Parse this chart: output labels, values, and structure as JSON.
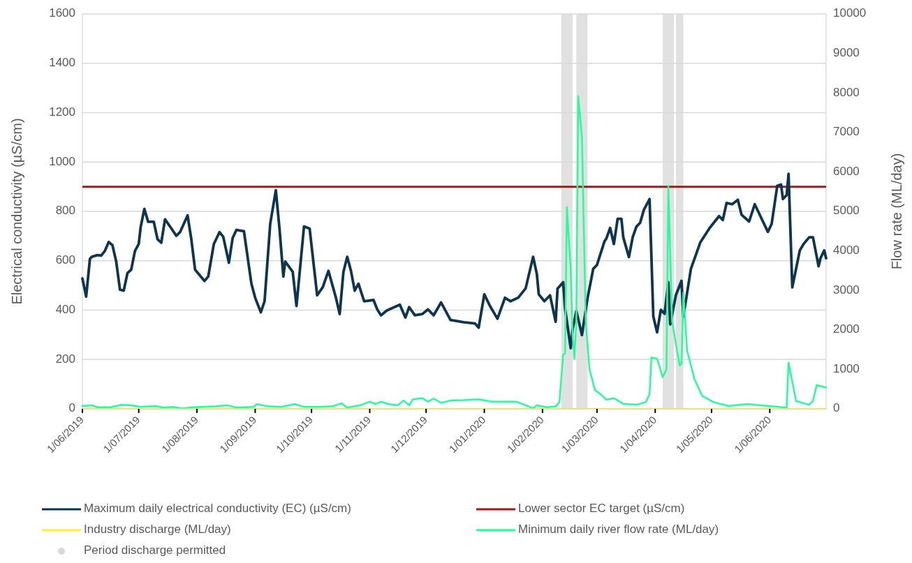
{
  "chart_data": {
    "type": "line",
    "xlabel": null,
    "ylabel": "Electrical conductivity (µS/cm)",
    "y2label": "Flow rate (ML/day)",
    "xlim": [
      "2019-06-01",
      "2020-07-01"
    ],
    "xticks": [
      {
        "value": "2019-06-01",
        "label": "1/06/2019"
      },
      {
        "value": "2019-07-01",
        "label": "1/07/2019"
      },
      {
        "value": "2019-08-01",
        "label": "1/08/2019"
      },
      {
        "value": "2019-09-01",
        "label": "1/09/2019"
      },
      {
        "value": "2019-10-01",
        "label": "1/10/2019"
      },
      {
        "value": "2019-11-01",
        "label": "1/11/2019"
      },
      {
        "value": "2019-12-01",
        "label": "1/12/2019"
      },
      {
        "value": "2020-01-01",
        "label": "1/01/2020"
      },
      {
        "value": "2020-02-01",
        "label": "1/02/2020"
      },
      {
        "value": "2020-03-01",
        "label": "1/03/2020"
      },
      {
        "value": "2020-04-01",
        "label": "1/04/2020"
      },
      {
        "value": "2020-05-01",
        "label": "1/05/2020"
      },
      {
        "value": "2020-06-01",
        "label": "1/06/2020"
      }
    ],
    "ylim": [
      0,
      1600
    ],
    "yticks": [
      0,
      200,
      400,
      600,
      800,
      1000,
      1200,
      1400,
      1600
    ],
    "y2lim": [
      0,
      10000
    ],
    "y2ticks": [
      0,
      1000,
      2000,
      3000,
      4000,
      5000,
      6000,
      7000,
      8000,
      9000,
      10000
    ],
    "grid": "y",
    "legend": "bottom",
    "line_style": "solid",
    "marker": "none",
    "series": [
      {
        "name": "Maximum daily electrical conductivity (EC) (µS/cm)",
        "color": "#0d3550",
        "x": [
          "2019-06-01",
          "2019-06-03",
          "2019-06-05",
          "2019-06-06",
          "2019-06-09",
          "2019-06-11",
          "2019-06-13",
          "2019-06-15",
          "2019-06-17",
          "2019-06-19",
          "2019-06-21",
          "2019-06-23",
          "2019-06-25",
          "2019-06-27",
          "2019-06-29",
          "2019-07-01",
          "2019-07-02",
          "2019-07-04",
          "2019-07-06",
          "2019-07-09",
          "2019-07-11",
          "2019-07-13",
          "2019-07-15",
          "2019-07-18",
          "2019-07-21",
          "2019-07-23",
          "2019-07-27",
          "2019-07-29",
          "2019-07-31",
          "2019-08-05",
          "2019-08-07",
          "2019-08-10",
          "2019-08-13",
          "2019-08-15",
          "2019-08-18",
          "2019-08-20",
          "2019-08-22",
          "2019-08-26",
          "2019-08-30",
          "2019-09-01",
          "2019-09-04",
          "2019-09-06",
          "2019-09-09",
          "2019-09-12",
          "2019-09-14",
          "2019-09-16",
          "2019-09-17",
          "2019-09-21",
          "2019-09-23",
          "2019-09-27",
          "2019-09-30",
          "2019-10-04",
          "2019-10-07",
          "2019-10-10",
          "2019-10-14",
          "2019-10-16",
          "2019-10-18",
          "2019-10-20",
          "2019-10-22",
          "2019-10-24",
          "2019-10-26",
          "2019-10-29",
          "2019-11-03",
          "2019-11-05",
          "2019-11-07",
          "2019-11-10",
          "2019-11-12",
          "2019-11-17",
          "2019-11-20",
          "2019-11-22",
          "2019-11-25",
          "2019-11-29",
          "2019-12-02",
          "2019-12-05",
          "2019-12-09",
          "2019-12-14",
          "2019-12-21",
          "2019-12-27",
          "2019-12-29",
          "2020-01-01",
          "2020-01-04",
          "2020-01-08",
          "2020-01-12",
          "2020-01-15",
          "2020-01-19",
          "2020-01-23",
          "2020-01-27",
          "2020-01-29",
          "2020-01-30",
          "2020-02-02",
          "2020-02-05",
          "2020-02-08",
          "2020-02-09",
          "2020-02-12",
          "2020-02-13",
          "2020-02-16",
          "2020-02-17",
          "2020-02-19",
          "2020-02-22",
          "2020-02-25",
          "2020-02-28",
          "2020-03-01",
          "2020-03-05",
          "2020-03-06",
          "2020-03-08",
          "2020-03-10",
          "2020-03-12",
          "2020-03-14",
          "2020-03-15",
          "2020-03-18",
          "2020-03-20",
          "2020-03-22",
          "2020-03-24",
          "2020-03-26",
          "2020-03-29",
          "2020-03-31",
          "2020-04-02",
          "2020-04-04",
          "2020-04-06",
          "2020-04-08",
          "2020-04-09",
          "2020-04-12",
          "2020-04-15",
          "2020-04-16",
          "2020-04-20",
          "2020-04-25",
          "2020-04-30",
          "2020-05-05",
          "2020-05-07",
          "2020-05-09",
          "2020-05-12",
          "2020-05-15",
          "2020-05-17",
          "2020-05-21",
          "2020-05-24",
          "2020-05-27",
          "2020-05-31",
          "2020-06-02",
          "2020-06-05",
          "2020-06-07",
          "2020-06-08",
          "2020-06-10",
          "2020-06-11",
          "2020-06-13",
          "2020-06-17",
          "2020-06-19",
          "2020-06-22",
          "2020-06-24",
          "2020-06-27",
          "2020-06-28",
          "2020-06-30",
          "2020-07-01"
        ],
        "values": [
          528,
          455,
          607,
          616,
          623,
          621,
          640,
          676,
          663,
          597,
          483,
          479,
          550,
          564,
          640,
          668,
          735,
          810,
          758,
          758,
          687,
          673,
          768,
          735,
          701,
          716,
          784,
          687,
          564,
          518,
          536,
          668,
          716,
          697,
          592,
          692,
          725,
          720,
          507,
          450,
          391,
          436,
          749,
          886,
          725,
          536,
          597,
          555,
          417,
          739,
          730,
          460,
          493,
          559,
          450,
          384,
          555,
          616,
          559,
          479,
          507,
          436,
          441,
          403,
          379,
          398,
          405,
          422,
          370,
          412,
          379,
          384,
          403,
          379,
          431,
          360,
          351,
          346,
          329,
          464,
          417,
          365,
          450,
          436,
          450,
          488,
          616,
          545,
          464,
          436,
          460,
          353,
          487,
          513,
          406,
          246,
          321,
          396,
          299,
          449,
          567,
          583,
          679,
          690,
          733,
          668,
          770,
          770,
          695,
          615,
          695,
          738,
          754,
          807,
          850,
          374,
          310,
          401,
          385,
          513,
          342,
          460,
          519,
          374,
          567,
          674,
          733,
          781,
          765,
          834,
          829,
          847,
          786,
          759,
          829,
          781,
          717,
          749,
          904,
          909,
          850,
          866,
          952,
          492,
          642,
          668,
          695,
          695,
          578,
          610,
          642,
          610
        ]
      },
      {
        "name": "Industry discharge (ML/day)",
        "color": "#ffee33",
        "axis": "y2",
        "x": [
          "2019-06-01",
          "2020-07-01"
        ],
        "values": [
          0,
          0
        ]
      },
      {
        "name": "Minimum daily river flow rate (ML/day)",
        "color": "#22ff99",
        "axis": "y2",
        "x": [
          "2019-06-01",
          "2019-06-06",
          "2019-06-09",
          "2019-06-16",
          "2019-06-22",
          "2019-06-27",
          "2019-07-02",
          "2019-07-10",
          "2019-07-14",
          "2019-07-19",
          "2019-07-24",
          "2019-07-30",
          "2019-08-11",
          "2019-08-17",
          "2019-08-22",
          "2019-08-31",
          "2019-09-02",
          "2019-09-08",
          "2019-09-15",
          "2019-09-22",
          "2019-09-27",
          "2019-10-05",
          "2019-10-12",
          "2019-10-17",
          "2019-10-20",
          "2019-10-27",
          "2019-11-01",
          "2019-11-04",
          "2019-11-07",
          "2019-11-11",
          "2019-11-16",
          "2019-11-19",
          "2019-11-22",
          "2019-11-24",
          "2019-11-29",
          "2019-12-02",
          "2019-12-05",
          "2019-12-09",
          "2019-12-14",
          "2019-12-21",
          "2019-12-29",
          "2020-01-05",
          "2020-01-18",
          "2020-01-23",
          "2020-01-27",
          "2020-01-29",
          "2020-02-03",
          "2020-02-08",
          "2020-02-10",
          "2020-02-12",
          "2020-02-13",
          "2020-02-14",
          "2020-02-16",
          "2020-02-17",
          "2020-02-18",
          "2020-02-19",
          "2020-02-20",
          "2020-02-22",
          "2020-02-24",
          "2020-02-26",
          "2020-02-29",
          "2020-03-03",
          "2020-03-06",
          "2020-03-10",
          "2020-03-15",
          "2020-03-22",
          "2020-03-27",
          "2020-03-29",
          "2020-03-30",
          "2020-04-02",
          "2020-04-05",
          "2020-04-07",
          "2020-04-08",
          "2020-04-10",
          "2020-04-14",
          "2020-04-15",
          "2020-04-16",
          "2020-04-18",
          "2020-04-22",
          "2020-04-26",
          "2020-05-02",
          "2020-05-10",
          "2020-05-20",
          "2020-05-31",
          "2020-06-10",
          "2020-06-11",
          "2020-06-15",
          "2020-06-22",
          "2020-06-24",
          "2020-06-26",
          "2020-07-01"
        ],
        "values": [
          70,
          90,
          40,
          40,
          100,
          90,
          50,
          70,
          30,
          50,
          10,
          40,
          60,
          90,
          30,
          50,
          120,
          60,
          50,
          120,
          50,
          50,
          60,
          140,
          30,
          90,
          180,
          120,
          180,
          120,
          90,
          210,
          90,
          240,
          270,
          180,
          260,
          150,
          210,
          220,
          240,
          180,
          180,
          90,
          10,
          90,
          40,
          60,
          170,
          1370,
          1400,
          5110,
          3540,
          1870,
          1270,
          2210,
          7920,
          6890,
          2210,
          1000,
          470,
          370,
          230,
          270,
          130,
          100,
          170,
          370,
          1300,
          1270,
          800,
          1000,
          5650,
          2210,
          1100,
          1140,
          2940,
          1470,
          740,
          330,
          170,
          70,
          120,
          70,
          30,
          1170,
          200,
          100,
          200,
          600,
          540
        ]
      }
    ],
    "ref_lines": [
      {
        "axis": "y",
        "value": 900,
        "label": "Lower sector EC target (µS/cm)",
        "color": "#9b1c1c"
      }
    ],
    "bands": [
      {
        "axis": "x",
        "from": "2020-02-11",
        "to": "2020-02-17",
        "label": "Period discharge permitted",
        "color": "#d9d9d9"
      },
      {
        "axis": "x",
        "from": "2020-02-19",
        "to": "2020-02-25",
        "color": "#d9d9d9"
      },
      {
        "axis": "x",
        "from": "2020-04-05",
        "to": "2020-04-11",
        "color": "#d9d9d9"
      },
      {
        "axis": "x",
        "from": "2020-04-12",
        "to": "2020-04-16",
        "color": "#d9d9d9"
      }
    ]
  }
}
